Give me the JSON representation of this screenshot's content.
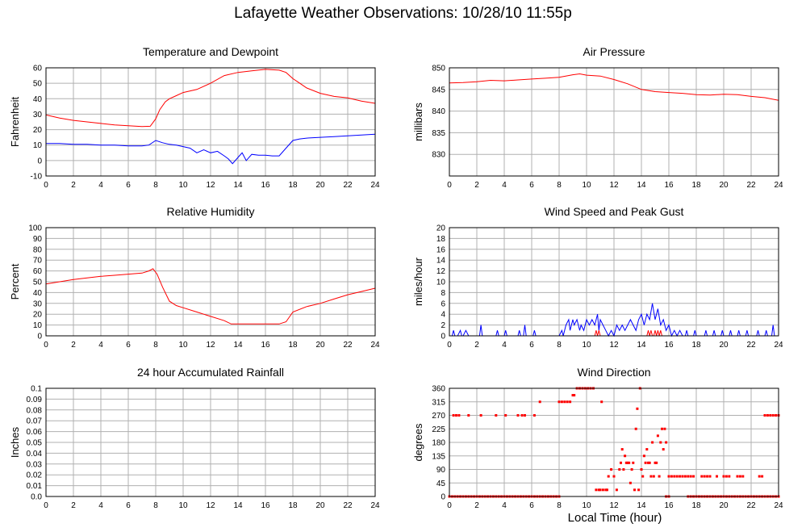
{
  "page": {
    "title": "Lafayette Weather Observations: 10/28/10 11:55p",
    "xlabel": "Local Time (hour)"
  },
  "colors": {
    "red": "#ff0000",
    "blue": "#0000ff",
    "grid": "#b0b0b0",
    "axis": "#000000"
  },
  "chart_data": [
    {
      "id": "temp",
      "type": "line",
      "title": "Temperature and Dewpoint",
      "ylabel": "Fahrenheit",
      "xlim": [
        0,
        24
      ],
      "ylim": [
        -10,
        60
      ],
      "xticks": [
        0,
        2,
        4,
        6,
        8,
        10,
        12,
        14,
        16,
        18,
        20,
        22,
        24
      ],
      "yticks": [
        -10,
        0,
        10,
        20,
        30,
        40,
        50,
        60
      ],
      "series": [
        {
          "color": "#ff0000",
          "x": [
            0,
            1,
            2,
            3,
            4,
            5,
            6,
            7,
            7.6,
            8,
            8.3,
            8.7,
            9,
            9.5,
            10,
            11,
            12,
            13,
            14,
            15,
            16,
            17,
            17.5,
            18,
            18.5,
            19,
            20,
            21,
            22,
            23,
            24
          ],
          "y": [
            29.5,
            27.5,
            26,
            25,
            24,
            23,
            22.5,
            22,
            22.2,
            27,
            33,
            38,
            40,
            42,
            44,
            46,
            50,
            55,
            57,
            58,
            59,
            58.5,
            57,
            53,
            50,
            47,
            43.5,
            41.5,
            40.5,
            38.5,
            37
          ]
        },
        {
          "color": "#0000ff",
          "x": [
            0,
            1,
            2,
            3,
            4,
            5,
            6,
            7,
            7.5,
            8,
            8.5,
            9,
            9.5,
            10,
            10.5,
            11,
            11.5,
            12,
            12.5,
            13,
            13.3,
            13.6,
            14,
            14.3,
            14.6,
            15,
            15.5,
            16,
            16.5,
            17,
            17.5,
            18,
            18.5,
            19,
            20,
            21,
            22,
            23,
            24
          ],
          "y": [
            11,
            11,
            10.5,
            10.5,
            10,
            10,
            9.5,
            9.5,
            10,
            13,
            11.5,
            10.5,
            10,
            9,
            8,
            5,
            7,
            5,
            6,
            3,
            1,
            -2,
            2,
            5,
            0,
            4,
            3.5,
            3.5,
            3,
            3,
            8,
            13,
            14,
            14.5,
            15,
            15.5,
            16,
            16.5,
            17
          ]
        }
      ]
    },
    {
      "id": "pressure",
      "type": "line",
      "title": "Air Pressure",
      "ylabel": "millibars",
      "xlim": [
        0,
        24
      ],
      "ylim": [
        825,
        850
      ],
      "xticks": [
        0,
        2,
        4,
        6,
        8,
        10,
        12,
        14,
        16,
        18,
        20,
        22,
        24
      ],
      "yticks": [
        830,
        835,
        840,
        845,
        850
      ],
      "series": [
        {
          "color": "#ff0000",
          "x": [
            0,
            1,
            2,
            3,
            4,
            5,
            6,
            7,
            8,
            9,
            9.5,
            10,
            11,
            12,
            13,
            14,
            15,
            16,
            17,
            18,
            19,
            20,
            21,
            22,
            23,
            24
          ],
          "y": [
            846.5,
            846.6,
            846.8,
            847.1,
            847.0,
            847.2,
            847.4,
            847.6,
            847.8,
            848.4,
            848.6,
            848.3,
            848.1,
            847.3,
            846.3,
            845.0,
            844.5,
            844.3,
            844.1,
            843.8,
            843.7,
            843.9,
            843.8,
            843.4,
            843.1,
            842.5
          ]
        }
      ]
    },
    {
      "id": "humidity",
      "type": "line",
      "title": "Relative Humidity",
      "ylabel": "Percent",
      "xlim": [
        0,
        24
      ],
      "ylim": [
        0,
        100
      ],
      "xticks": [
        0,
        2,
        4,
        6,
        8,
        10,
        12,
        14,
        16,
        18,
        20,
        22,
        24
      ],
      "yticks": [
        0,
        10,
        20,
        30,
        40,
        50,
        60,
        70,
        80,
        90,
        100
      ],
      "series": [
        {
          "color": "#ff0000",
          "x": [
            0,
            1,
            2,
            3,
            4,
            5,
            6,
            7,
            7.5,
            7.8,
            8.1,
            8.5,
            9,
            9.5,
            10,
            11,
            12,
            13,
            13.5,
            14,
            15,
            16,
            17,
            17.5,
            18,
            19,
            20,
            21,
            22,
            23,
            24
          ],
          "y": [
            48,
            50,
            52,
            53.5,
            55,
            56,
            57,
            58,
            60,
            62,
            57,
            45,
            32,
            28,
            26,
            22,
            18,
            14,
            11,
            11,
            11,
            11,
            11,
            13,
            22,
            27,
            30,
            34,
            38,
            41,
            44
          ]
        }
      ]
    },
    {
      "id": "wind",
      "type": "line",
      "title": "Wind Speed and Peak Gust",
      "ylabel": "miles/hour",
      "xlim": [
        0,
        24
      ],
      "ylim": [
        0,
        20
      ],
      "xticks": [
        0,
        2,
        4,
        6,
        8,
        10,
        12,
        14,
        16,
        18,
        20,
        22,
        24
      ],
      "yticks": [
        0,
        2,
        4,
        6,
        8,
        10,
        12,
        14,
        16,
        18,
        20
      ],
      "series": [
        {
          "color": "#0000ff",
          "x": [
            0,
            0.2,
            0.3,
            0.4,
            0.6,
            0.8,
            0.9,
            1.0,
            1.2,
            1.4,
            1.5,
            1.6,
            2.2,
            2.3,
            2.4,
            2.5,
            3.4,
            3.5,
            3.6,
            4.0,
            4.1,
            4.2,
            5.0,
            5.1,
            5.2,
            5.4,
            5.5,
            5.6,
            6.1,
            6.2,
            6.3,
            7.0,
            8.0,
            8.2,
            8.3,
            8.5,
            8.7,
            8.8,
            9.0,
            9.1,
            9.3,
            9.5,
            9.6,
            9.8,
            10.0,
            10.2,
            10.4,
            10.6,
            10.8,
            10.9,
            11.0,
            11.2,
            11.4,
            11.6,
            11.8,
            12.0,
            12.2,
            12.4,
            12.6,
            12.8,
            13.0,
            13.2,
            13.4,
            13.6,
            13.8,
            14.0,
            14.2,
            14.4,
            14.6,
            14.8,
            15.0,
            15.2,
            15.4,
            15.6,
            15.8,
            16.0,
            16.2,
            16.4,
            16.6,
            16.8,
            17.0,
            17.2,
            17.3,
            17.4,
            17.8,
            17.9,
            18.0,
            18.6,
            18.7,
            18.8,
            19.2,
            19.3,
            19.4,
            19.8,
            19.9,
            20.0,
            20.4,
            20.5,
            20.6,
            21.0,
            21.1,
            21.2,
            21.6,
            21.7,
            21.8,
            22.4,
            22.5,
            22.6,
            23.0,
            23.1,
            23.2,
            23.5,
            23.6,
            23.7,
            24.0
          ],
          "y": [
            0,
            0,
            1,
            0,
            0,
            1,
            0,
            0,
            1,
            0,
            0,
            0,
            0,
            2,
            0,
            0,
            0,
            1,
            0,
            0,
            1,
            0,
            0,
            1,
            0,
            0,
            2,
            0,
            0,
            1,
            0,
            0,
            0,
            1,
            0,
            2,
            3,
            1,
            3,
            2,
            3,
            1,
            2,
            1,
            3,
            2,
            3,
            2,
            4,
            1,
            3,
            2,
            1,
            0,
            1,
            0,
            2,
            1,
            2,
            1,
            2,
            3,
            2,
            1,
            3,
            4,
            2,
            4,
            3,
            6,
            3,
            5,
            2,
            3,
            1,
            2,
            0,
            1,
            0,
            1,
            0,
            0,
            1,
            0,
            0,
            1,
            0,
            0,
            1,
            0,
            0,
            1,
            0,
            0,
            1,
            0,
            0,
            1,
            0,
            0,
            1,
            0,
            0,
            1,
            0,
            0,
            1,
            0,
            0,
            1,
            0,
            0,
            2,
            0,
            0
          ]
        },
        {
          "color": "#ff0000",
          "x": [
            0,
            10.6,
            10.7,
            10.8,
            10.9,
            11.0,
            11.1,
            14.4,
            14.5,
            14.6,
            14.7,
            14.8,
            14.9,
            15.0,
            15.1,
            15.2,
            15.3,
            15.4,
            15.5,
            24
          ],
          "y": [
            0,
            0,
            1,
            0,
            1,
            0,
            0,
            0,
            1,
            0,
            1,
            0,
            0,
            1,
            0,
            1,
            0,
            1,
            0,
            0
          ]
        }
      ]
    },
    {
      "id": "rain",
      "type": "line",
      "title": "24 hour Accumulated Rainfall",
      "ylabel": "Inches",
      "xlim": [
        0,
        24
      ],
      "ylim": [
        0,
        0.1
      ],
      "xticks": [
        0,
        2,
        4,
        6,
        8,
        10,
        12,
        14,
        16,
        18,
        20,
        22,
        24
      ],
      "yticks": [
        "0.0",
        "0.01",
        "0.02",
        "0.03",
        "0.04",
        "0.05",
        "0.06",
        "0.07",
        "0.08",
        "0.09",
        "0.1"
      ],
      "series": [
        {
          "color": "#ff0000",
          "x": [
            0,
            24
          ],
          "y": [
            0,
            0
          ]
        }
      ]
    },
    {
      "id": "winddir",
      "type": "scatter",
      "title": "Wind Direction",
      "ylabel": "degrees",
      "xlim": [
        0,
        24
      ],
      "ylim": [
        0,
        360
      ],
      "xticks": [
        0,
        2,
        4,
        6,
        8,
        10,
        12,
        14,
        16,
        18,
        20,
        22,
        24
      ],
      "yticks": [
        0,
        45,
        90,
        135,
        180,
        225,
        270,
        315,
        360
      ],
      "series": [
        {
          "color": "#ff0000",
          "x": [
            0.3,
            0.5,
            0.7,
            1.4,
            2.3,
            3.4,
            4.1,
            5.0,
            5.3,
            5.5,
            6.2,
            6.6,
            8.0,
            8.2,
            8.4,
            8.6,
            8.8,
            9.0,
            9.1,
            9.3,
            9.5,
            9.7,
            9.9,
            10.1,
            10.3,
            10.5,
            10.7,
            10.9,
            11.0,
            11.1,
            11.2,
            11.4,
            11.5,
            11.6,
            11.8,
            12.0,
            12.2,
            12.4,
            12.5,
            12.6,
            12.7,
            12.8,
            12.9,
            13.0,
            13.1,
            13.2,
            13.3,
            13.4,
            13.5,
            13.6,
            13.7,
            13.8,
            13.9,
            14.0,
            14.1,
            14.2,
            14.3,
            14.4,
            14.5,
            14.6,
            14.7,
            14.8,
            14.9,
            15.0,
            15.1,
            15.2,
            15.3,
            15.4,
            15.5,
            15.6,
            15.7,
            15.8,
            16.0,
            16.2,
            16.4,
            16.6,
            16.8,
            17.0,
            17.2,
            17.4,
            17.6,
            17.8,
            18.4,
            18.6,
            18.8,
            19.0,
            19.5,
            20.0,
            20.2,
            20.4,
            21.0,
            21.2,
            21.4,
            22.6,
            22.8,
            23.0,
            23.2,
            23.4,
            23.6,
            23.8,
            24.0
          ],
          "y": [
            270,
            270,
            270,
            270,
            270,
            270,
            270,
            270,
            270,
            270,
            270,
            315,
            315,
            315,
            315,
            315,
            315,
            337,
            337,
            360,
            360,
            360,
            360,
            360,
            360,
            360,
            22,
            22,
            22,
            315,
            22,
            22,
            22,
            67,
            90,
            67,
            22,
            90,
            112,
            157,
            90,
            135,
            112,
            112,
            112,
            45,
            90,
            112,
            22,
            225,
            292,
            22,
            360,
            90,
            67,
            135,
            112,
            157,
            112,
            112,
            67,
            180,
            67,
            112,
            112,
            202,
            67,
            180,
            225,
            157,
            225,
            180,
            67,
            67,
            67,
            67,
            67,
            67,
            67,
            67,
            67,
            67,
            67,
            67,
            67,
            67,
            67,
            67,
            67,
            67,
            67,
            67,
            67,
            67,
            67,
            270,
            270,
            270,
            270,
            270,
            270
          ]
        },
        {
          "color": "#ff0000",
          "x": [
            0.0,
            0.2,
            0.4,
            0.6,
            0.8,
            1.0,
            1.2,
            1.4,
            1.6,
            1.8,
            2.0,
            2.2,
            2.4,
            2.6,
            2.8,
            3.0,
            3.2,
            3.4,
            3.6,
            3.8,
            4.0,
            4.2,
            4.4,
            4.6,
            4.8,
            5.0,
            5.2,
            5.4,
            5.6,
            5.8,
            6.0,
            6.2,
            6.4,
            6.6,
            6.8,
            7.0,
            7.2,
            7.4,
            7.6,
            7.8,
            8.0,
            15.8,
            16.0,
            17.4,
            17.6,
            17.8,
            18.0,
            18.2,
            18.4,
            18.6,
            18.8,
            19.0,
            19.2,
            19.4,
            19.6,
            19.8,
            20.0,
            20.2,
            20.4,
            20.6,
            20.8,
            21.0,
            21.2,
            21.4,
            21.6,
            21.8,
            22.0,
            22.2,
            22.4,
            22.6,
            22.8,
            23.0,
            23.2,
            23.4,
            23.6,
            23.8,
            24.0
          ],
          "y": [
            0,
            0,
            0,
            0,
            0,
            0,
            0,
            0,
            0,
            0,
            0,
            0,
            0,
            0,
            0,
            0,
            0,
            0,
            0,
            0,
            0,
            0,
            0,
            0,
            0,
            0,
            0,
            0,
            0,
            0,
            0,
            0,
            0,
            0,
            0,
            0,
            0,
            0,
            0,
            0,
            0,
            0,
            0,
            0,
            0,
            0,
            0,
            0,
            0,
            0,
            0,
            0,
            0,
            0,
            0,
            0,
            0,
            0,
            0,
            0,
            0,
            0,
            0,
            0,
            0,
            0,
            0,
            0,
            0,
            0,
            0,
            0,
            0,
            0,
            0,
            0,
            0
          ]
        }
      ]
    }
  ]
}
